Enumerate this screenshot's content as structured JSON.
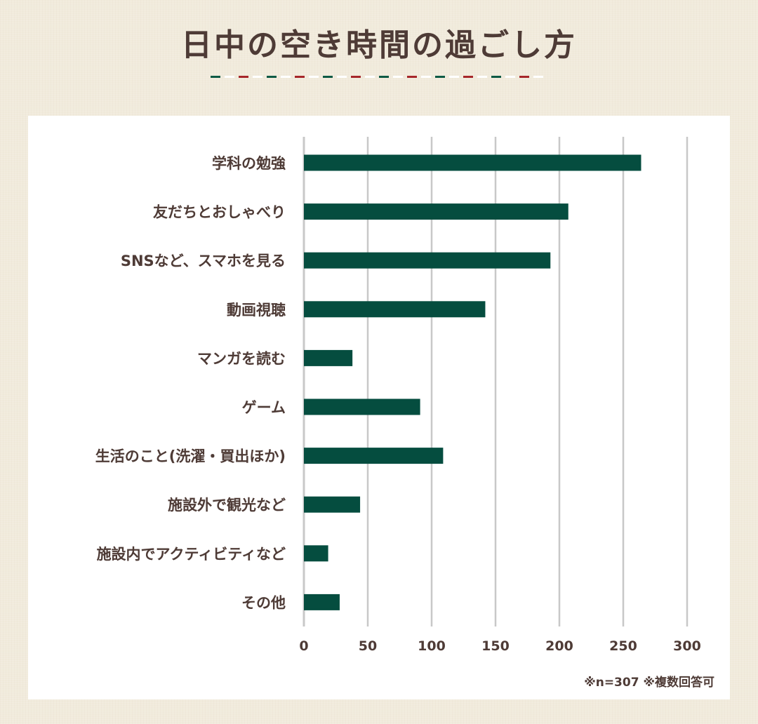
{
  "title": "日中の空き時間の過ごし方",
  "note": "※n=307 ※複数回答可",
  "colors": {
    "bar": "#054d3f",
    "text": "#4e3b36",
    "grid": "#c8c8c8",
    "deco_red": "#a6262a",
    "deco_green": "#0d5a45",
    "deco_white": "#ffffff"
  },
  "chart_data": {
    "type": "bar",
    "orientation": "horizontal",
    "categories": [
      "学科の勉強",
      "友だちとおしゃべり",
      "SNSなど、スマホを見る",
      "動画視聴",
      "マンガを読む",
      "ゲーム",
      "生活のこと(洗濯・買出ほか)",
      "施設外で観光など",
      "施設内でアクティビティなど",
      "その他"
    ],
    "values": [
      264,
      207,
      193,
      142,
      38,
      91,
      109,
      44,
      19,
      28
    ],
    "xlim": [
      0,
      300
    ],
    "xticks": [
      0,
      50,
      100,
      150,
      200,
      250,
      300
    ],
    "grid": true,
    "legend": "none"
  }
}
